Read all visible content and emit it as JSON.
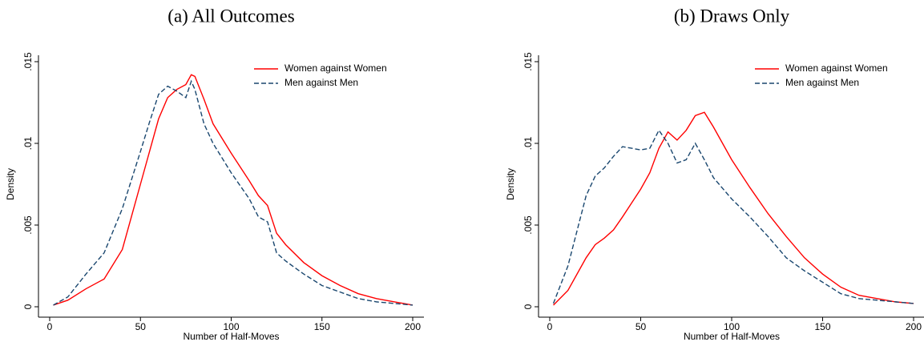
{
  "chart_data": [
    {
      "type": "line",
      "title": "(a) All Outcomes",
      "xlabel": "Number of Half-Moves",
      "ylabel": "Density",
      "x": [
        2,
        10,
        20,
        30,
        40,
        50,
        55,
        60,
        65,
        70,
        75,
        78,
        80,
        85,
        90,
        100,
        110,
        115,
        120,
        125,
        130,
        140,
        150,
        160,
        170,
        180,
        190,
        200
      ],
      "series": [
        {
          "name": "Women against Women",
          "color": "#ff0000",
          "line_style": "solid",
          "values": [
            0.0001,
            0.0004,
            0.0011,
            0.0017,
            0.0035,
            0.0075,
            0.0095,
            0.0115,
            0.0128,
            0.0133,
            0.0136,
            0.0142,
            0.0141,
            0.0127,
            0.0112,
            0.0094,
            0.0077,
            0.0068,
            0.0062,
            0.0045,
            0.0038,
            0.0027,
            0.0019,
            0.0013,
            0.0008,
            0.0005,
            0.0003,
            0.0001
          ]
        },
        {
          "name": "Men against Men",
          "color": "#1a476f",
          "line_style": "dashed",
          "values": [
            0.0001,
            0.0006,
            0.002,
            0.0033,
            0.006,
            0.0095,
            0.0113,
            0.013,
            0.0135,
            0.0132,
            0.0128,
            0.0138,
            0.0133,
            0.0112,
            0.01,
            0.0082,
            0.0066,
            0.0055,
            0.0052,
            0.0033,
            0.0028,
            0.002,
            0.0013,
            0.0009,
            0.0005,
            0.0003,
            0.0002,
            0.0001
          ]
        }
      ],
      "xlim": [
        0,
        200
      ],
      "xticks": [
        0,
        50,
        100,
        150,
        200
      ],
      "ylim": [
        0,
        0.015
      ],
      "yticks": [
        0,
        {
          "value": 0.005,
          "label": ".005"
        },
        {
          "value": 0.01,
          "label": ".01"
        },
        {
          "value": 0.015,
          "label": ".015"
        }
      ],
      "legend": "top-right",
      "grid": false
    },
    {
      "type": "line",
      "title": "(b) Draws Only",
      "xlabel": "Number of Half-Moves",
      "ylabel": "Density",
      "x": [
        2,
        10,
        20,
        25,
        30,
        35,
        40,
        50,
        55,
        60,
        65,
        70,
        75,
        80,
        85,
        90,
        100,
        110,
        120,
        130,
        140,
        150,
        160,
        170,
        180,
        190,
        200
      ],
      "series": [
        {
          "name": "Women against Women",
          "color": "#ff0000",
          "line_style": "solid",
          "values": [
            0.0001,
            0.001,
            0.003,
            0.0038,
            0.0042,
            0.0047,
            0.0055,
            0.0072,
            0.0082,
            0.0097,
            0.0107,
            0.0102,
            0.0108,
            0.0117,
            0.0119,
            0.011,
            0.009,
            0.0073,
            0.0057,
            0.0043,
            0.003,
            0.002,
            0.0012,
            0.0007,
            0.0005,
            0.0003,
            0.0002
          ]
        },
        {
          "name": "Men against Men",
          "color": "#1a476f",
          "line_style": "dashed",
          "values": [
            0.0002,
            0.0025,
            0.0068,
            0.008,
            0.0085,
            0.0092,
            0.0098,
            0.0096,
            0.0097,
            0.0108,
            0.01,
            0.0088,
            0.009,
            0.01,
            0.009,
            0.0079,
            0.0066,
            0.0055,
            0.0043,
            0.003,
            0.0022,
            0.0015,
            0.0008,
            0.0005,
            0.0004,
            0.0003,
            0.0002
          ]
        }
      ],
      "xlim": [
        0,
        200
      ],
      "xticks": [
        0,
        50,
        100,
        150,
        200
      ],
      "ylim": [
        0,
        0.015
      ],
      "yticks": [
        0,
        {
          "value": 0.005,
          "label": ".005"
        },
        {
          "value": 0.01,
          "label": ".01"
        },
        {
          "value": 0.015,
          "label": ".015"
        }
      ],
      "legend": "top-right",
      "grid": false
    }
  ]
}
